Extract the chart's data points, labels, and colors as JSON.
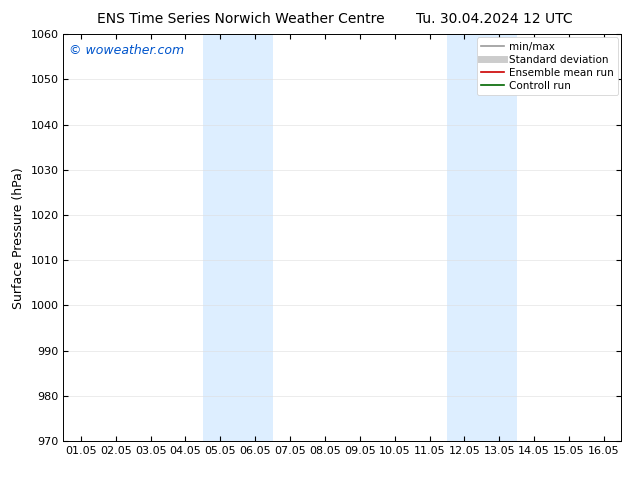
{
  "title_left": "ENS Time Series Norwich Weather Centre",
  "title_right": "Tu. 30.04.2024 12 UTC",
  "ylabel": "Surface Pressure (hPa)",
  "xlim": [
    0,
    15
  ],
  "ylim": [
    970,
    1060
  ],
  "yticks": [
    970,
    980,
    990,
    1000,
    1010,
    1020,
    1030,
    1040,
    1050,
    1060
  ],
  "xtick_labels": [
    "01.05",
    "02.05",
    "03.05",
    "04.05",
    "05.05",
    "06.05",
    "07.05",
    "08.05",
    "09.05",
    "10.05",
    "11.05",
    "12.05",
    "13.05",
    "14.05",
    "15.05",
    "16.05"
  ],
  "xtick_positions": [
    0,
    1,
    2,
    3,
    4,
    5,
    6,
    7,
    8,
    9,
    10,
    11,
    12,
    13,
    14,
    15
  ],
  "shaded_bands": [
    {
      "x_start": 3.5,
      "x_end": 5.5
    },
    {
      "x_start": 10.5,
      "x_end": 12.5
    }
  ],
  "shaded_color": "#ddeeff",
  "watermark": "© woweather.com",
  "watermark_color": "#0055cc",
  "legend_entries": [
    {
      "label": "min/max",
      "color": "#999999",
      "lw": 1.2
    },
    {
      "label": "Standard deviation",
      "color": "#cccccc",
      "lw": 5
    },
    {
      "label": "Ensemble mean run",
      "color": "#cc0000",
      "lw": 1.2
    },
    {
      "label": "Controll run",
      "color": "#006600",
      "lw": 1.2
    }
  ],
  "bg_color": "#ffffff",
  "title_fontsize": 10,
  "tick_fontsize": 8,
  "ylabel_fontsize": 9,
  "watermark_fontsize": 9,
  "legend_fontsize": 7.5
}
